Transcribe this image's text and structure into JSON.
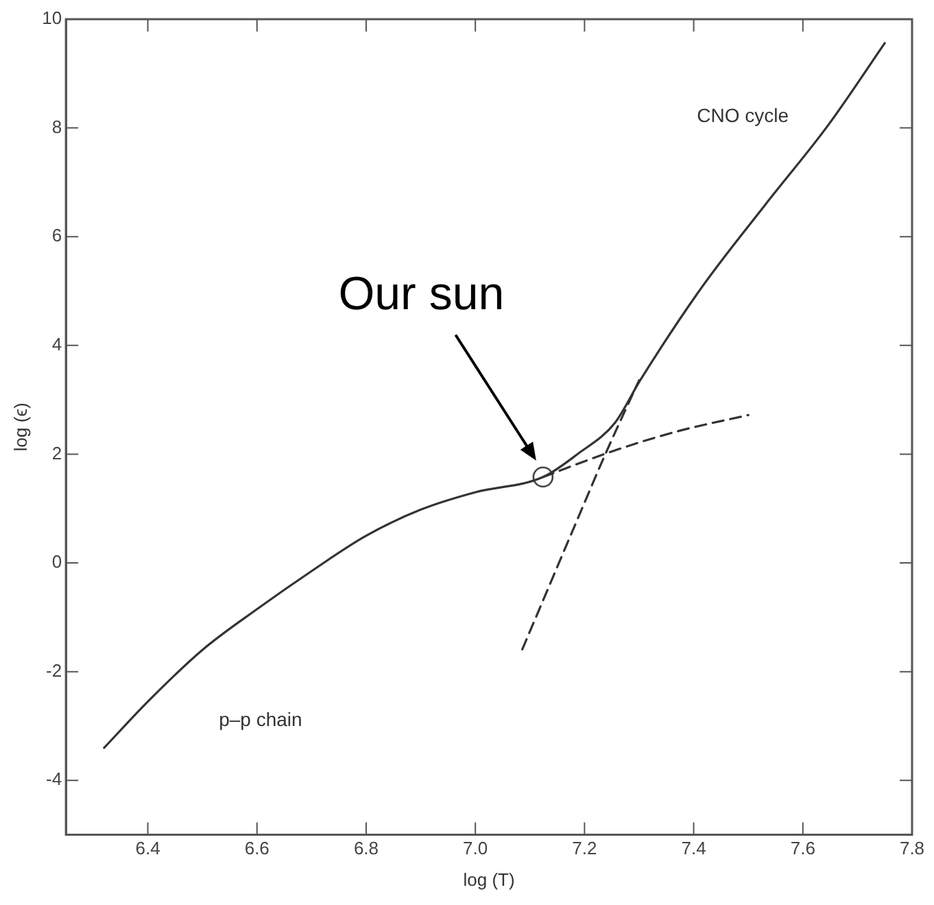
{
  "chart_data": {
    "type": "line",
    "xlabel": "log (T)",
    "ylabel": "log (ϵ)",
    "xlim": [
      6.25,
      7.8
    ],
    "xticks": [
      6.4,
      6.6,
      6.8,
      {
        "value": 7,
        "label": "7.0"
      },
      7.2,
      7.4,
      7.6,
      7.8
    ],
    "ylim": [
      -5,
      10
    ],
    "yticks": [
      -4,
      -2,
      0,
      2,
      4,
      6,
      8,
      10
    ],
    "grid": false,
    "legend": false,
    "marker": "none",
    "series": [
      {
        "color": "#333333",
        "line_style": "solid",
        "x": [
          6.32,
          6.4,
          6.5,
          6.6,
          6.7,
          6.8,
          6.9,
          7.0,
          7.124,
          7.187,
          7.256,
          7.302,
          7.417,
          7.532,
          7.647,
          7.75
        ],
        "values": [
          -3.4,
          -2.55,
          -1.6,
          -0.85,
          -0.15,
          0.5,
          0.98,
          1.3,
          1.58,
          2.0,
          2.58,
          3.36,
          5.1,
          6.6,
          8.06,
          9.56
        ]
      },
      {
        "color": "#333333",
        "line_style": "dashed",
        "x": [
          7.124,
          7.25,
          7.37,
          7.5
        ],
        "values": [
          1.58,
          2.05,
          2.42,
          2.72
        ]
      },
      {
        "color": "#333333",
        "line_style": "dashed",
        "x": [
          7.086,
          7.187,
          7.239,
          7.3
        ],
        "values": [
          -1.59,
          0.8,
          2.02,
          3.36
        ]
      },
      {
        "type": "scatter",
        "color": "#444444",
        "marker": "circle",
        "x": [
          7.124
        ],
        "values": [
          1.58
        ]
      }
    ],
    "annotations": [
      "Our sun",
      "CNO cycle",
      "p–p chain"
    ]
  }
}
